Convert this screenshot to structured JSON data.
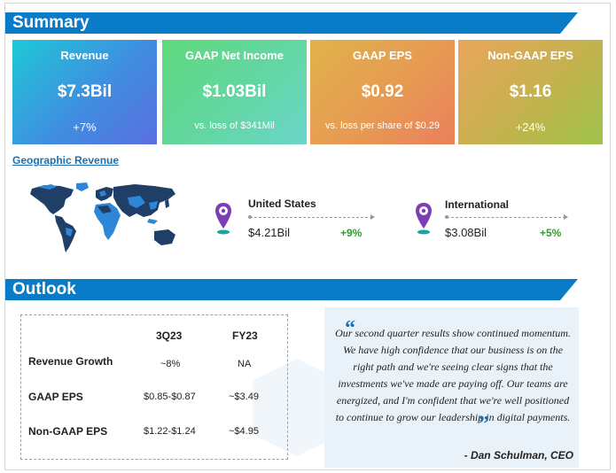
{
  "summary": {
    "title": "Summary",
    "cards": [
      {
        "label": "Revenue",
        "value": "$7.3Bil",
        "sub": "+7%"
      },
      {
        "label": "GAAP Net Income",
        "value": "$1.03Bil",
        "sub": "vs. loss of $341Mil"
      },
      {
        "label": "GAAP EPS",
        "value": "$0.92",
        "sub": "vs. loss per share of $0.29"
      },
      {
        "label": "Non-GAAP EPS",
        "value": "$1.16",
        "sub": "+24%"
      }
    ]
  },
  "geographic": {
    "title": "Geographic Revenue",
    "regions": [
      {
        "name": "United States",
        "value": "$4.21Bil",
        "growth": "+9%"
      },
      {
        "name": "International",
        "value": "$3.08Bil",
        "growth": "+5%"
      }
    ]
  },
  "outlook": {
    "title": "Outlook",
    "columns": [
      "3Q23",
      "FY23"
    ],
    "rows": [
      {
        "label": "Revenue Growth",
        "values": [
          "~8%",
          "NA"
        ]
      },
      {
        "label": "GAAP EPS",
        "values": [
          "$0.85-$0.87",
          "~$3.49"
        ]
      },
      {
        "label": "Non-GAAP EPS",
        "values": [
          "$1.22-$1.24",
          "~$4.95"
        ]
      }
    ]
  },
  "quote": {
    "open_mark": "“",
    "close_mark": "”",
    "text": "Our second quarter results show continued momentum. We have high confidence that our business is on the right path and we're seeing clear signs that the investments we've made are paying off. Our teams are energized, and I'm confident that we're well positioned to continue to grow our leadership in digital payments.",
    "author": "- Dan Schulman, CEO"
  },
  "colors": {
    "banner": "#0a7bc7",
    "map_dark": "#1f3f66",
    "map_light": "#2e86d6",
    "pin": "#7a3fb5",
    "growth": "#2e9e2e"
  }
}
